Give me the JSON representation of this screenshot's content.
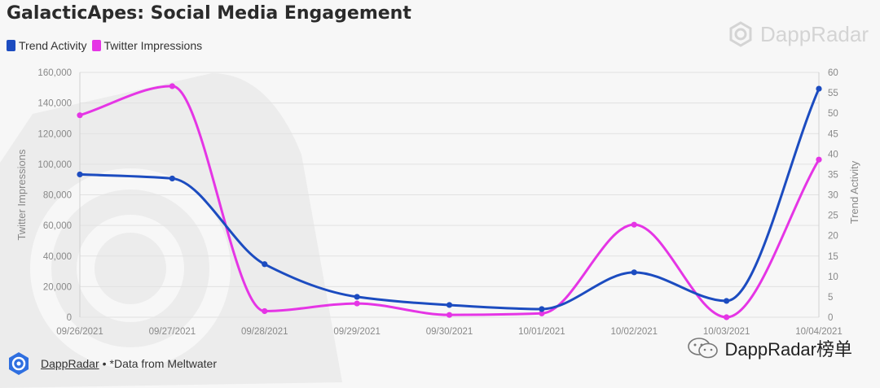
{
  "title": "GalacticApes: Social Media Engagement",
  "legend": {
    "items": [
      {
        "label": "Trend Activity",
        "color": "#1c4cc0"
      },
      {
        "label": "Twitter Impressions",
        "color": "#e535e5"
      }
    ]
  },
  "brand": {
    "name": "DappRadar",
    "icon": "dappradar-logo-icon"
  },
  "footer": {
    "link": "DappRadar",
    "separator": "•",
    "note": "*Data from Meltwater"
  },
  "watermark": {
    "text": "DappRadar榜单",
    "icon": "wechat-icon"
  },
  "colors": {
    "trend": "#1c4cc0",
    "twitter": "#e535e5",
    "grid": "#e2e2e2",
    "tick": "#888888"
  },
  "chart_data": {
    "type": "line",
    "categories": [
      "09/26/2021",
      "09/27/2021",
      "09/28/2021",
      "09/29/2021",
      "09/30/2021",
      "10/01/2021",
      "10/02/2021",
      "10/03/2021",
      "10/04/2021"
    ],
    "series": [
      {
        "name": "Trend Activity",
        "axis": "right",
        "values": [
          35,
          34,
          13,
          5,
          3,
          2,
          11,
          4,
          56
        ]
      },
      {
        "name": "Twitter Impressions",
        "axis": "left",
        "values": [
          132000,
          151000,
          4000,
          9000,
          1500,
          2500,
          60500,
          0,
          103000
        ]
      }
    ],
    "y_left": {
      "label": "Twitter Impressions",
      "range": [
        0,
        160000
      ],
      "ticks": [
        "0",
        "20,000",
        "40,000",
        "60,000",
        "80,000",
        "100,000",
        "120,000",
        "140,000",
        "160,000"
      ]
    },
    "y_right": {
      "label": "Trend Activity",
      "range": [
        0,
        60
      ],
      "ticks": [
        "0",
        "5",
        "10",
        "15",
        "20",
        "25",
        "30",
        "35",
        "40",
        "45",
        "50",
        "55",
        "60"
      ]
    },
    "grid": true,
    "legend_position": "top-left"
  }
}
